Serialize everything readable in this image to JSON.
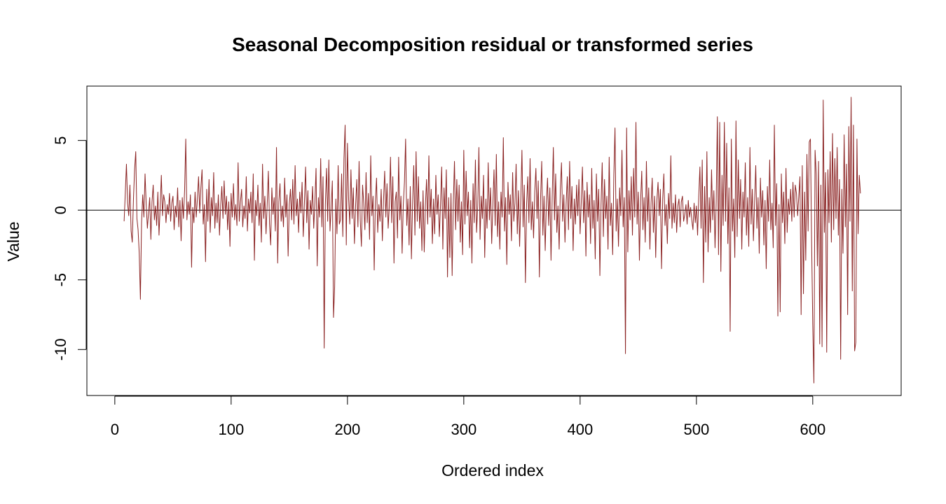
{
  "chart_data": {
    "type": "line",
    "title": "Seasonal Decomposition residual or transformed series",
    "xlabel": "Ordered index",
    "ylabel": "Value",
    "xlim": [
      -24,
      676
    ],
    "ylim": [
      -13.3,
      8.9
    ],
    "x_ticks": [
      0,
      100,
      200,
      300,
      400,
      500,
      600
    ],
    "y_ticks": [
      -10,
      -5,
      0,
      5
    ],
    "reference_line_y": 0,
    "grid": false,
    "legend": "none",
    "series": [
      {
        "color": "#8b2323",
        "x_start": 8,
        "x_step": 1,
        "values": [
          -0.8,
          1.2,
          3.3,
          0.5,
          -0.4,
          1.8,
          -1.5,
          -2.3,
          0.7,
          2.9,
          4.2,
          -0.6,
          -1.4,
          -3.1,
          -6.4,
          -0.9,
          1.1,
          -0.5,
          2.6,
          0.4,
          -1.3,
          -0.2,
          0.9,
          -2.1,
          0.6,
          1.8,
          -0.7,
          0.3,
          -1.1,
          1.3,
          -1.8,
          0.2,
          2.5,
          -0.4,
          1.1,
          0.6,
          -0.9,
          0.4,
          -0.3,
          1.2,
          -0.8,
          0.5,
          1.0,
          -1.4,
          0.3,
          -0.5,
          1.6,
          -1.2,
          0.7,
          -2.2,
          0.9,
          -0.6,
          1.4,
          5.1,
          -0.7,
          0.6,
          -0.3,
          1.1,
          -4.1,
          0.2,
          -0.9,
          1.3,
          -0.5,
          0.8,
          2.4,
          -0.2,
          1.6,
          2.9,
          -1.0,
          0.4,
          -3.7,
          1.5,
          -0.8,
          2.2,
          -1.6,
          0.9,
          -0.4,
          2.7,
          -1.3,
          0.5,
          -0.9,
          1.1,
          -1.8,
          0.3,
          1.7,
          -0.6,
          2.1,
          -0.3,
          1.0,
          -1.4,
          0.6,
          -2.6,
          1.2,
          -0.5,
          1.9,
          -0.7,
          0.4,
          -1.1,
          3.4,
          -0.8,
          0.6,
          1.5,
          -1.2,
          0.3,
          -0.6,
          2.4,
          -1.5,
          0.8,
          -0.2,
          1.3,
          -0.9,
          2.6,
          -3.6,
          0.7,
          -0.4,
          1.8,
          -1.1,
          0.5,
          -2.3,
          3.3,
          -0.6,
          1.0,
          -1.7,
          0.4,
          2.8,
          -1.0,
          -2.5,
          1.6,
          -0.3,
          0.9,
          -1.5,
          4.5,
          -3.8,
          0.6,
          1.9,
          -0.8,
          0.3,
          -1.2,
          2.3,
          -0.5,
          1.1,
          -3.3,
          0.4,
          1.5,
          -0.7,
          2.2,
          -1.0,
          3.2,
          -0.4,
          0.8,
          -1.6,
          1.3,
          -0.2,
          2.0,
          -1.9,
          0.5,
          3.1,
          -0.9,
          1.4,
          -2.8,
          0.7,
          -0.3,
          1.7,
          -1.3,
          0.6,
          3.0,
          -4.0,
          0.9,
          -0.5,
          3.7,
          -1.2,
          2.4,
          -9.9,
          0.4,
          3.0,
          -0.8,
          3.6,
          -1.5,
          0.2,
          2.1,
          -7.7,
          -5.5,
          0.8,
          -1.7,
          3.2,
          -1.0,
          -0.7,
          2.6,
          -1.9,
          3.7,
          6.1,
          -2.5,
          4.8,
          0.8,
          -1.0,
          2.9,
          -0.6,
          1.6,
          -2.4,
          0.3,
          2.2,
          -1.2,
          3.5,
          -0.7,
          -2.6,
          1.8,
          0.5,
          -1.4,
          2.7,
          -0.9,
          1.2,
          -2.1,
          3.9,
          -0.4,
          1.0,
          -4.3,
          0.6,
          2.3,
          -1.6,
          0.4,
          -0.8,
          1.5,
          -2.2,
          0.7,
          2.8,
          -0.5,
          1.9,
          -1.3,
          0.3,
          3.8,
          -0.9,
          2.4,
          -3.8,
          0.6,
          1.3,
          -2.0,
          3.8,
          -0.7,
          1.0,
          -3.1,
          0.4,
          2.0,
          5.1,
          -1.1,
          0.8,
          -2.5,
          1.7,
          -3.5,
          0.5,
          3.2,
          -1.8,
          4.2,
          -0.8,
          2.4,
          -1.3,
          0.6,
          -2.9,
          1.4,
          -3.0,
          0.3,
          2.2,
          -1.0,
          3.9,
          -0.5,
          1.5,
          -2.4,
          0.8,
          -1.7,
          2.5,
          -0.3,
          1.1,
          -1.9,
          0.4,
          3.1,
          -2.8,
          1.6,
          -0.6,
          2.9,
          -4.8,
          0.9,
          -3.4,
          1.2,
          -4.7,
          0.5,
          3.5,
          -1.4,
          2.2,
          -0.8,
          1.8,
          -2.3,
          0.6,
          -3.2,
          4.3,
          -1.0,
          2.8,
          -0.4,
          1.3,
          -2.7,
          0.7,
          -3.8,
          1.9,
          -0.9,
          3.6,
          -1.6,
          0.3,
          4.5,
          -2.1,
          1.0,
          -0.6,
          2.5,
          -3.4,
          0.8,
          -1.3,
          3.4,
          -0.7,
          1.6,
          -2.4,
          0.4,
          2.9,
          -1.1,
          4.0,
          -1.9,
          0.6,
          -2.8,
          1.3,
          -0.5,
          5.2,
          -1.5,
          0.9,
          -3.9,
          2.0,
          -0.3,
          1.1,
          -2.2,
          2.7,
          -0.8,
          0.5,
          3.3,
          -1.7,
          1.4,
          -2.6,
          0.7,
          4.3,
          -1.2,
          1.8,
          -5.2,
          0.4,
          2.4,
          -0.9,
          3.7,
          -1.4,
          0.6,
          -2.0,
          1.3,
          3.0,
          -0.6,
          2.1,
          -4.8,
          0.8,
          3.5,
          -1.8,
          1.0,
          -2.9,
          0.5,
          2.3,
          -1.1,
          1.6,
          -3.6,
          0.9,
          4.5,
          -0.7,
          2.6,
          -1.6,
          0.3,
          -2.8,
          1.5,
          3.4,
          -0.8,
          1.1,
          -2.3,
          0.5,
          2.4,
          -1.4,
          3.5,
          -0.6,
          1.7,
          -2.9,
          0.8,
          -1.0,
          1.8,
          -0.4,
          2.2,
          -1.7,
          0.6,
          3.1,
          -0.9,
          1.4,
          -3.3,
          2.0,
          -0.5,
          1.1,
          -2.4,
          3.0,
          -1.3,
          0.7,
          -3.5,
          2.6,
          -0.8,
          1.5,
          -4.7,
          0.4,
          3.4,
          -1.9,
          2.2,
          -0.6,
          1.0,
          -2.8,
          3.8,
          -1.1,
          0.5,
          -3.2,
          2.5,
          5.9,
          -1.5,
          0.8,
          -2.6,
          1.6,
          -0.4,
          4.3,
          -1.2,
          0.9,
          -10.3,
          5.9,
          -3.0,
          1.4,
          -0.7,
          2.4,
          -1.8,
          3.0,
          -0.5,
          6.3,
          -1.0,
          1.3,
          -3.6,
          0.6,
          2.8,
          -1.4,
          0.9,
          -2.3,
          3.5,
          -0.8,
          1.6,
          -2.8,
          0.5,
          2.3,
          -1.6,
          1.0,
          -3.4,
          0.7,
          2.0,
          -0.4,
          1.5,
          -4.2,
          0.8,
          2.6,
          -1.1,
          0.4,
          -2.4,
          1.2,
          -0.6,
          3.9,
          -1.3,
          0.5,
          -0.9,
          1.1,
          -1.6,
          0.3,
          0.8,
          -1.2,
          0.6,
          1.0,
          -0.8,
          -0.3,
          0.4,
          -1.0,
          0.7,
          -0.5,
          0.2,
          -0.7,
          -1.4,
          0.5,
          -0.9,
          0.3,
          -1.8,
          1.0,
          3.1,
          -1.3,
          3.6,
          -5.2,
          1.7,
          -2.3,
          4.2,
          -3.0,
          0.9,
          -1.6,
          2.9,
          -0.7,
          1.4,
          -2.7,
          0.6,
          6.7,
          -3.2,
          6.3,
          -4.4,
          2.5,
          -1.1,
          6.3,
          -0.8,
          4.8,
          -2.4,
          1.6,
          -8.7,
          5.1,
          -1.5,
          0.8,
          -3.4,
          6.4,
          -1.9,
          3.6,
          -0.6,
          2.2,
          -2.8,
          1.3,
          -0.5,
          3.4,
          -1.8,
          0.9,
          -2.6,
          4.5,
          -1.0,
          1.5,
          -2.2,
          0.6,
          3.2,
          -1.3,
          0.9,
          -3.1,
          2.3,
          -0.5,
          1.4,
          -2.5,
          0.7,
          -4.2,
          1.7,
          -0.8,
          3.6,
          -1.4,
          0.5,
          -2.7,
          6.1,
          -1.1,
          1.9,
          -7.6,
          0.4,
          -7.3,
          2.6,
          -0.9,
          1.3,
          -2.4,
          3.0,
          -1.6,
          0.8,
          -0.3,
          1.5,
          -0.8,
          2.0,
          -0.5,
          1.8,
          1.2,
          -0.4,
          1.0,
          2.4,
          -7.5,
          3.2,
          -6.0,
          1.3,
          -3.6,
          4.0,
          -1.5,
          4.9,
          5.1,
          -2.1,
          -8.2,
          -12.4,
          4.3,
          2.6,
          -4.0,
          3.5,
          -9.6,
          1.8,
          -9.8,
          7.9,
          -1.6,
          2.7,
          -10.2,
          2.9,
          -0.9,
          4.2,
          -2.3,
          5.5,
          -1.4,
          3.7,
          -0.6,
          4.5,
          -1.8,
          2.2,
          -10.7,
          1.5,
          -3.1,
          5.4,
          -1.2,
          3.3,
          -7.5,
          6.0,
          -0.8,
          8.1,
          -5.8,
          6.1,
          -10.1,
          -9.5,
          5.1,
          -1.7,
          2.5,
          1.2
        ]
      }
    ]
  }
}
